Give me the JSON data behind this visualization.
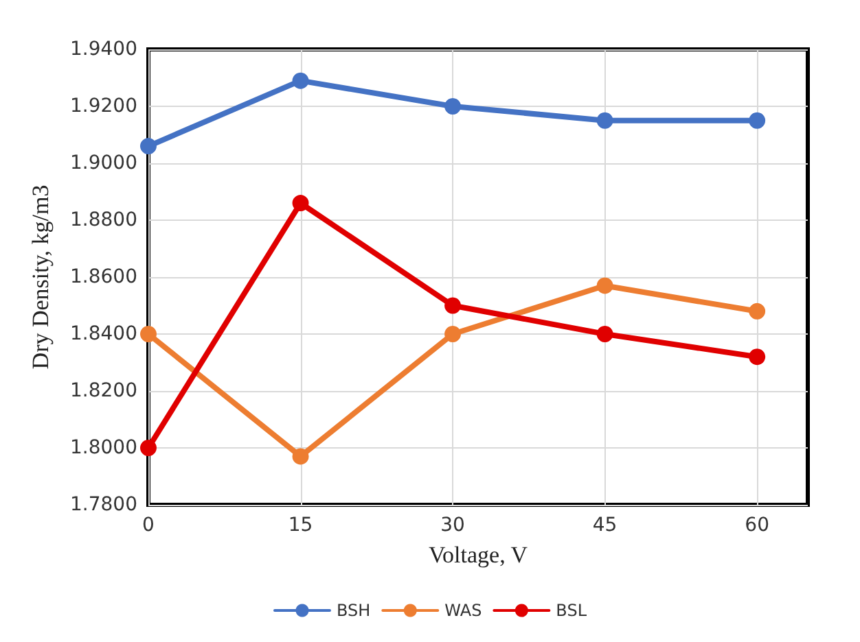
{
  "chart_data": {
    "type": "line",
    "xlabel": "Voltage, V",
    "ylabel": "Dry Density, kg/m3",
    "x": [
      0,
      15,
      30,
      45,
      60
    ],
    "xlim": [
      0,
      65
    ],
    "xticks": [
      0,
      15,
      30,
      45,
      60
    ],
    "ylim": [
      1.78,
      1.94
    ],
    "yticks": [
      {
        "value": 1.78,
        "label": "1.7800"
      },
      {
        "value": 1.8,
        "label": "1.8000"
      },
      {
        "value": 1.82,
        "label": "1.8200"
      },
      {
        "value": 1.84,
        "label": "1.8400"
      },
      {
        "value": 1.86,
        "label": "1.8600"
      },
      {
        "value": 1.88,
        "label": "1.8800"
      },
      {
        "value": 1.9,
        "label": "1.9000"
      },
      {
        "value": 1.92,
        "label": "1.9200"
      },
      {
        "value": 1.94,
        "label": "1.9400"
      }
    ],
    "series": [
      {
        "name": "BSH",
        "color": "#4472c4",
        "values": [
          1.906,
          1.929,
          1.92,
          1.915,
          1.915
        ]
      },
      {
        "name": "WAS",
        "color": "#ed7d31",
        "values": [
          1.84,
          1.797,
          1.84,
          1.857,
          1.848
        ]
      },
      {
        "name": "BSL",
        "color": "#e00000",
        "values": [
          1.8,
          1.886,
          1.85,
          1.84,
          1.832
        ]
      }
    ],
    "grid": true,
    "legend": "bottom",
    "marker": "circle",
    "line_style": "solid"
  }
}
